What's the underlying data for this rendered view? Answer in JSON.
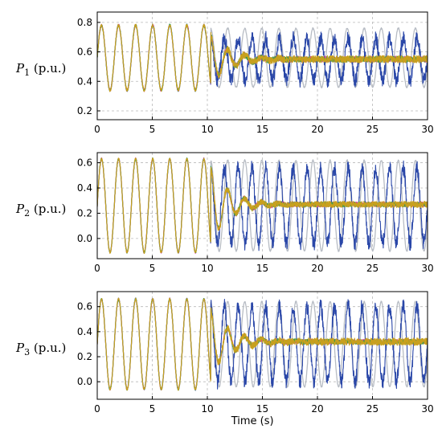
{
  "chart_data": [
    {
      "type": "line",
      "ylabel": {
        "base": "P",
        "sub": "1",
        "unit": " (p.u.)"
      },
      "xlabel": "",
      "xlim": [
        0,
        30
      ],
      "ylim": [
        0.14,
        0.87
      ],
      "xticks": [
        0,
        5,
        10,
        15,
        20,
        25,
        30
      ],
      "yticks": [
        0.2,
        0.4,
        0.6,
        0.8
      ],
      "ytick_labels": [
        "0.2",
        "0.4",
        "0.6",
        "0.8"
      ],
      "grid": true,
      "event_time": 10.3,
      "pre_event": {
        "center": 0.56,
        "amplitude": 0.22,
        "period": 1.55
      },
      "series": [
        {
          "color": "#b7bcc4",
          "center": 0.56,
          "amplitude": 0.2,
          "period": 1.55,
          "decay": 0,
          "noise": 0.005
        },
        {
          "color": "#2a47a8",
          "center": 0.55,
          "amplitude": 0.14,
          "period": 1.25,
          "decay": 0,
          "noise": 0.05
        },
        {
          "color": "#e0409c",
          "center": 0.55,
          "amplitude": 0.16,
          "period": 1.55,
          "decay": 0.55,
          "noise": 0.02
        },
        {
          "color": "#3d9b4a",
          "center": 0.55,
          "amplitude": 0.16,
          "period": 1.55,
          "decay": 0.55,
          "noise": 0.02
        },
        {
          "color": "#c8a01e",
          "center": 0.55,
          "amplitude": 0.16,
          "period": 1.55,
          "decay": 0.55,
          "noise": 0.025
        }
      ]
    },
    {
      "type": "line",
      "ylabel": {
        "base": "P",
        "sub": "2",
        "unit": " (p.u.)"
      },
      "xlabel": "",
      "xlim": [
        0,
        30
      ],
      "ylim": [
        -0.16,
        0.68
      ],
      "xticks": [
        0,
        5,
        10,
        15,
        20,
        25,
        30
      ],
      "yticks": [
        0.0,
        0.2,
        0.4,
        0.6
      ],
      "ytick_labels": [
        "0.0",
        "0.2",
        "0.4",
        "0.6"
      ],
      "grid": true,
      "event_time": 10.3,
      "pre_event": {
        "center": 0.26,
        "amplitude": 0.37,
        "period": 1.55
      },
      "series": [
        {
          "color": "#b7bcc4",
          "center": 0.26,
          "amplitude": 0.36,
          "period": 1.55,
          "decay": 0,
          "noise": 0.005
        },
        {
          "color": "#2a47a8",
          "center": 0.26,
          "amplitude": 0.3,
          "period": 1.25,
          "decay": 0,
          "noise": 0.06
        },
        {
          "color": "#e0409c",
          "center": 0.27,
          "amplitude": 0.3,
          "period": 1.55,
          "decay": 0.6,
          "noise": 0.02
        },
        {
          "color": "#3d9b4a",
          "center": 0.27,
          "amplitude": 0.3,
          "period": 1.55,
          "decay": 0.6,
          "noise": 0.02
        },
        {
          "color": "#c8a01e",
          "center": 0.27,
          "amplitude": 0.3,
          "period": 1.55,
          "decay": 0.6,
          "noise": 0.025
        }
      ]
    },
    {
      "type": "line",
      "ylabel": {
        "base": "P",
        "sub": "3",
        "unit": " (p.u.)"
      },
      "xlabel": "Time (s)",
      "xlim": [
        0,
        30
      ],
      "ylim": [
        -0.14,
        0.72
      ],
      "xticks": [
        0,
        5,
        10,
        15,
        20,
        25,
        30
      ],
      "yticks": [
        0.0,
        0.2,
        0.4,
        0.6
      ],
      "ytick_labels": [
        "0.0",
        "0.2",
        "0.4",
        "0.6"
      ],
      "grid": true,
      "event_time": 10.3,
      "pre_event": {
        "center": 0.3,
        "amplitude": 0.36,
        "period": 1.55
      },
      "series": [
        {
          "color": "#b7bcc4",
          "center": 0.3,
          "amplitude": 0.34,
          "period": 1.55,
          "decay": 0,
          "noise": 0.005
        },
        {
          "color": "#2a47a8",
          "center": 0.3,
          "amplitude": 0.3,
          "period": 1.25,
          "decay": 0,
          "noise": 0.06
        },
        {
          "color": "#e0409c",
          "center": 0.32,
          "amplitude": 0.25,
          "period": 1.55,
          "decay": 0.55,
          "noise": 0.02
        },
        {
          "color": "#3d9b4a",
          "center": 0.32,
          "amplitude": 0.25,
          "period": 1.55,
          "decay": 0.55,
          "noise": 0.02
        },
        {
          "color": "#c8a01e",
          "center": 0.32,
          "amplitude": 0.25,
          "period": 1.55,
          "decay": 0.55,
          "noise": 0.03
        }
      ]
    }
  ]
}
